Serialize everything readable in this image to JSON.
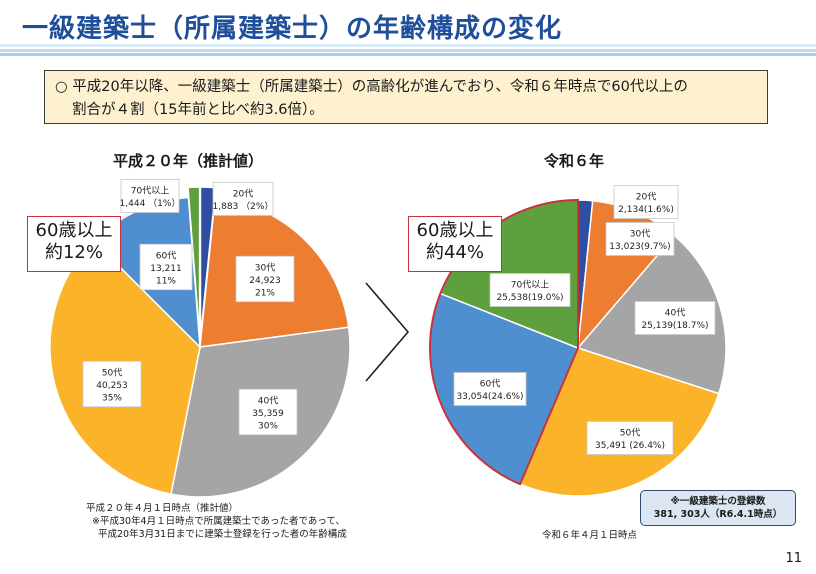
{
  "page": {
    "title": "一級建築士（所属建築士）の年齢構成の変化",
    "summary_line1": "○ 平成20年以降、一級建築士（所属建築士）の高齢化が進んでおり、令和６年時点で60代以上の",
    "summary_line2": "割合が４割（15年前と比べ約3.6倍）。",
    "page_number": "11"
  },
  "colors": {
    "20s": "#2e4fa1",
    "30s": "#ed7d31",
    "40s": "#a5a5a5",
    "50s": "#fbb42a",
    "60s": "#4f8fd0",
    "70s": "#5fa03e",
    "callout_border": "#c8323c"
  },
  "left": {
    "heading": "平成２０年（推計値）",
    "callout_line1": "60歳以上",
    "callout_line2": "約12%",
    "note_line1": "平成２０年４月１日時点（推計値）",
    "note_line2": "※平成30年4月１日時点で所属建築士であった者であって、",
    "note_line3": "平成20年3月31日までに建築士登録を行った者の年齢構成"
  },
  "right": {
    "heading": "令和６年",
    "callout_line1": "60歳以上",
    "callout_line2": "約44%",
    "note_line1": "令和６年４月１日時点",
    "reg_line1": "※一級建築士の登録数",
    "reg_line2": "381, 303人（R6.4.1時点）"
  },
  "chart_data": [
    {
      "type": "pie",
      "title": "平成２０年（推計値）",
      "categories": [
        "20代",
        "30代",
        "40代",
        "50代",
        "60代",
        "70代以上"
      ],
      "values": [
        1883,
        24923,
        35359,
        40253,
        13211,
        1444
      ],
      "labels": [
        {
          "category": "20代",
          "count": "1,883",
          "pct": "（2%）"
        },
        {
          "category": "30代",
          "count": "24,923",
          "pct": "21%"
        },
        {
          "category": "40代",
          "count": "35,359",
          "pct": "30%"
        },
        {
          "category": "50代",
          "count": "40,253",
          "pct": "35%"
        },
        {
          "category": "60代",
          "count": "13,211",
          "pct": "11%"
        },
        {
          "category": "70代以上",
          "count": "1,444",
          "pct": "（1%）"
        }
      ]
    },
    {
      "type": "pie",
      "title": "令和６年",
      "categories": [
        "20代",
        "30代",
        "40代",
        "50代",
        "60代",
        "70代以上"
      ],
      "values": [
        2134,
        13023,
        25139,
        35491,
        33054,
        25538
      ],
      "labels": [
        {
          "category": "20代",
          "value_text": "2,134(1.6%)"
        },
        {
          "category": "30代",
          "value_text": "13,023(9.7%)"
        },
        {
          "category": "40代",
          "value_text": "25,139(18.7%)"
        },
        {
          "category": "50代",
          "value_text": "35,491 (26.4%)"
        },
        {
          "category": "60代",
          "value_text": "33,054(24.6%)"
        },
        {
          "category": "70代以上",
          "value_text": "25,538(19.0%)"
        }
      ]
    }
  ]
}
